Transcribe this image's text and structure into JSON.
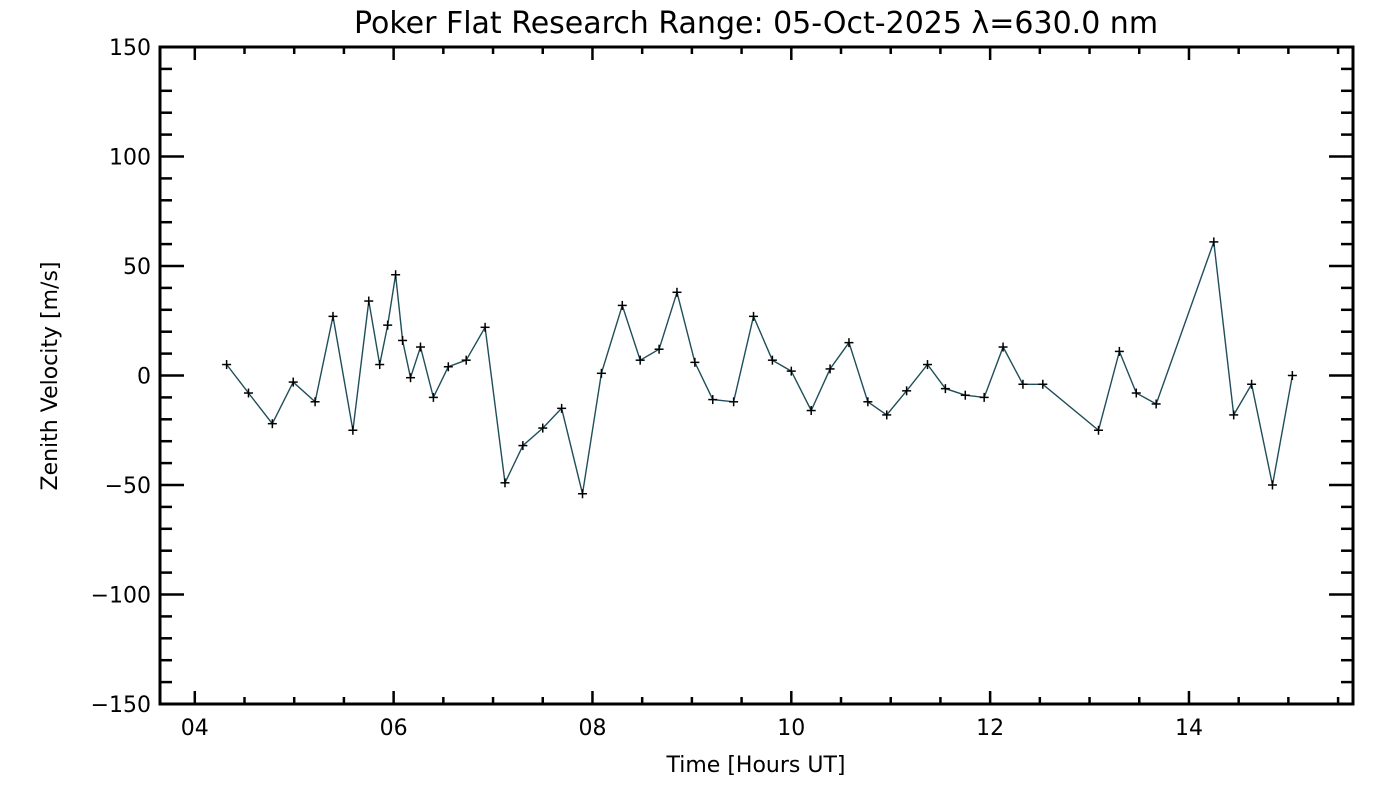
{
  "chart_data": {
    "type": "line",
    "title": "Poker Flat Research Range: 05-Oct-2025 λ=630.0 nm",
    "xlabel": "Time [Hours UT]",
    "ylabel": "Zenith Velocity [m/s]",
    "xlim": [
      3.65,
      15.65
    ],
    "ylim": [
      -150,
      150
    ],
    "x_ticks": [
      4,
      6,
      8,
      10,
      12,
      14
    ],
    "x_tick_labels": [
      "04",
      "06",
      "08",
      "10",
      "12",
      "14"
    ],
    "y_ticks": [
      150,
      100,
      50,
      0,
      -50,
      -100,
      -150
    ],
    "y_tick_labels": [
      "150",
      "100",
      "50",
      "0",
      "−50",
      "−100",
      "−150"
    ],
    "x_minor_step": 0.5,
    "y_minor_step": 10,
    "grid": false,
    "marker": "+",
    "line_color": "#1f4e5a",
    "x": [
      4.32,
      4.54,
      4.78,
      4.99,
      5.21,
      5.39,
      5.59,
      5.75,
      5.86,
      5.94,
      6.02,
      6.09,
      6.17,
      6.27,
      6.4,
      6.55,
      6.73,
      6.92,
      7.12,
      7.3,
      7.5,
      7.69,
      7.9,
      8.09,
      8.3,
      8.48,
      8.67,
      8.85,
      9.03,
      9.21,
      9.42,
      9.62,
      9.81,
      10.0,
      10.2,
      10.39,
      10.58,
      10.77,
      10.96,
      11.16,
      11.37,
      11.55,
      11.75,
      11.94,
      12.13,
      12.33,
      12.53,
      13.09,
      13.3,
      13.47,
      13.67,
      14.25,
      14.45,
      14.63,
      14.84,
      15.04
    ],
    "y": [
      5,
      -8,
      -22,
      -3,
      -12,
      27,
      -25,
      34,
      5,
      23,
      46,
      16,
      -1,
      13,
      -10,
      4,
      7,
      22,
      -49,
      -32,
      -24,
      -15,
      -54,
      1,
      32,
      7,
      12,
      38,
      6,
      -11,
      -12,
      27,
      7,
      2,
      -16,
      3,
      15,
      -12,
      -18,
      -7,
      5,
      -6,
      -9,
      -10,
      13,
      -4,
      -4,
      -25,
      11,
      -8,
      -13,
      61,
      -18,
      -4,
      -50,
      0
    ]
  }
}
